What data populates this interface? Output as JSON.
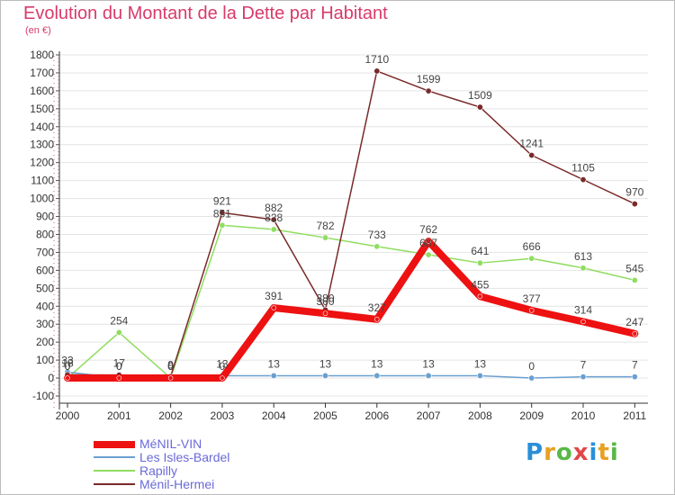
{
  "title": "Evolution du Montant de la Dette par Habitant",
  "subtitle": "(en €)",
  "logo": {
    "text": "Proxiti",
    "letters": [
      "P",
      "r",
      "o",
      "x",
      "i",
      "t",
      "i"
    ],
    "colors": [
      "#2a8fd8",
      "#e8a020",
      "#58b848",
      "#e04848",
      "#2a8fd8",
      "#e8a020",
      "#58b848"
    ]
  },
  "chart_data": {
    "type": "line",
    "title": "Evolution du Montant de la Dette par Habitant",
    "subtitle": "(en €)",
    "xlabel": "",
    "ylabel": "",
    "x": [
      "2000",
      "2001",
      "2002",
      "2003",
      "2004",
      "2005",
      "2006",
      "2007",
      "2008",
      "2009",
      "2010",
      "2011"
    ],
    "ylim": [
      -100,
      1800
    ],
    "yticks": [
      -100,
      0,
      100,
      200,
      300,
      400,
      500,
      600,
      700,
      800,
      900,
      1000,
      1100,
      1200,
      1300,
      1400,
      1500,
      1600,
      1700,
      1800
    ],
    "grid": "horizontal",
    "legend_position": "bottom-left",
    "series": [
      {
        "name": "MéNIL-VIN",
        "color": "#ee1111",
        "width": 8,
        "values": [
          0,
          0,
          0,
          0,
          391,
          360,
          327,
          762,
          455,
          377,
          314,
          247
        ],
        "labels": [
          "0",
          "0",
          "0",
          "0",
          "391",
          "360",
          "327",
          "762",
          "455",
          "377",
          "314",
          "247"
        ]
      },
      {
        "name": "Les Isles-Bardel",
        "color": "#6aa0d0",
        "width": 1.5,
        "values": [
          33,
          0,
          0,
          13,
          13,
          13,
          13,
          13,
          13,
          0,
          7,
          7
        ],
        "labels": [
          "33",
          "0",
          "0",
          "13",
          "13",
          "13",
          "13",
          "13",
          "13",
          "0",
          "7",
          "7"
        ]
      },
      {
        "name": "Rapilly",
        "color": "#90dd60",
        "width": 1.5,
        "values": [
          0,
          254,
          0,
          851,
          828,
          782,
          733,
          687,
          641,
          666,
          613,
          545
        ],
        "labels": [
          "0",
          "254",
          "0",
          "851",
          "828",
          "782",
          "733",
          "687",
          "641",
          "666",
          "613",
          "545"
        ]
      },
      {
        "name": "Ménil-Hermei",
        "color": "#7a2a2a",
        "width": 1.5,
        "values": [
          18,
          17,
          9,
          921,
          882,
          380,
          1710,
          1599,
          1509,
          1241,
          1105,
          970
        ],
        "labels": [
          "18",
          "17",
          "9",
          "921",
          "882",
          "380",
          "1710",
          "1599",
          "1509",
          "1241",
          "1105",
          "970"
        ]
      }
    ]
  }
}
